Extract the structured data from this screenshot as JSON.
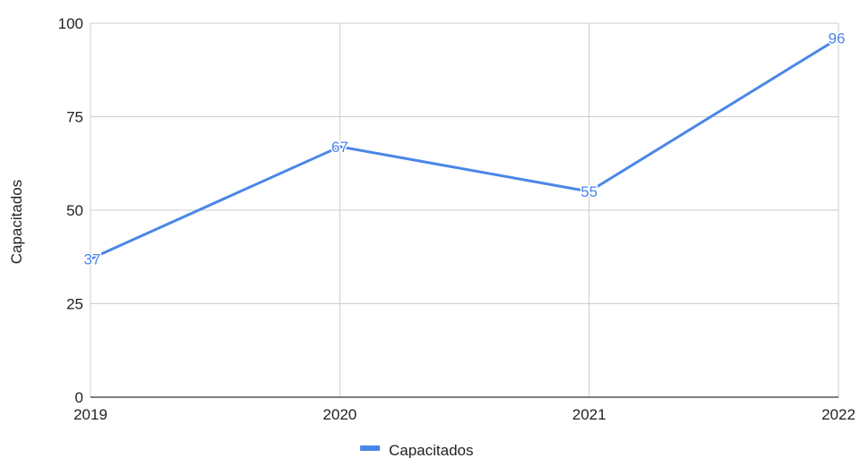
{
  "chart_data": {
    "type": "line",
    "categories": [
      "2019",
      "2020",
      "2021",
      "2022"
    ],
    "series": [
      {
        "name": "Capacitados",
        "values": [
          37,
          67,
          55,
          96
        ],
        "color": "#4a86e8"
      }
    ],
    "ylabel": "Capacitados",
    "xlabel": "",
    "ylim": [
      0,
      100
    ],
    "yticks": [
      "0",
      "25",
      "50",
      "75",
      "100"
    ],
    "data_labels": [
      "37",
      "67",
      "55",
      "96"
    ],
    "grid": true,
    "legend": {
      "position": "bottom",
      "label": "Capacitados"
    }
  }
}
